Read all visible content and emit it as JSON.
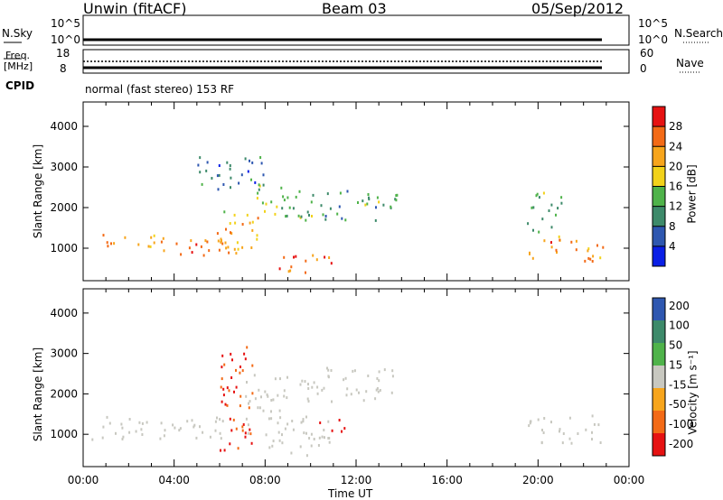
{
  "header": {
    "radar": "Unwin (fitACF)",
    "beam": "Beam 03",
    "date": "05/Sep/2012"
  },
  "noise_panel": {
    "left_label": "N.Sky",
    "right_label": "N.Search",
    "left_ticks": [
      "10^5",
      "10^0"
    ],
    "right_ticks": [
      "10^5",
      "10^0"
    ]
  },
  "freq_panel": {
    "left_label_1": "Freq.",
    "left_label_2": "[MHz]",
    "right_label": "Nave",
    "left_ticks": [
      "18",
      "8"
    ],
    "right_ticks": [
      "60",
      "0"
    ]
  },
  "cpid": {
    "label": "CPID",
    "text": "normal (fast stereo) 153 RF"
  },
  "colors": {
    "power": [
      "#0a1fe6",
      "#2e57b0",
      "#3d8a6a",
      "#4fb34a",
      "#f2d21a",
      "#f7a51c",
      "#f36a16",
      "#e61212"
    ],
    "velocity": [
      "#e61212",
      "#f36a16",
      "#f7a51c",
      "#c8c8c0",
      "#4fb34a",
      "#3d8a6a",
      "#2e57b0"
    ]
  },
  "chart_data": [
    {
      "type": "heatmap",
      "panel": "power",
      "ylabel": "Slant Range [km]",
      "y_ticks": [
        "1000",
        "2000",
        "3000",
        "4000"
      ],
      "ylim": [
        200,
        4600
      ],
      "colorbar_label": "Power [dB]",
      "colorbar_ticks": [
        "4",
        "8",
        "12",
        "16",
        "20",
        "24",
        "28"
      ],
      "colorbar_range": [
        0,
        32
      ],
      "echo_regions": [
        {
          "t0": 0.3,
          "t1": 3.5,
          "r0": 1000,
          "r1": 1400,
          "power": 22
        },
        {
          "t0": 3.5,
          "t1": 6.5,
          "r0": 800,
          "r1": 1400,
          "power": 26
        },
        {
          "t0": 6.0,
          "t1": 8.0,
          "r0": 900,
          "r1": 2000,
          "power": 20
        },
        {
          "t0": 7.0,
          "t1": 9.5,
          "r0": 1800,
          "r1": 2600,
          "power": 14
        },
        {
          "t0": 8.5,
          "t1": 11.0,
          "r0": 400,
          "r1": 900,
          "power": 26
        },
        {
          "t0": 9.5,
          "t1": 13.8,
          "r0": 1700,
          "r1": 2500,
          "power": 12
        },
        {
          "t0": 5.0,
          "t1": 8.0,
          "r0": 2400,
          "r1": 3300,
          "power": 8
        },
        {
          "t0": 19.5,
          "t1": 22.9,
          "r0": 700,
          "r1": 1300,
          "power": 24
        },
        {
          "t0": 19.5,
          "t1": 21.0,
          "r0": 1300,
          "r1": 2400,
          "power": 12
        }
      ]
    },
    {
      "type": "heatmap",
      "panel": "velocity",
      "ylabel": "Slant Range [km]",
      "y_ticks": [
        "1000",
        "2000",
        "3000",
        "4000"
      ],
      "ylim": [
        200,
        4600
      ],
      "xlabel": "Time UT",
      "x_ticks": [
        "00:00",
        "04:00",
        "08:00",
        "12:00",
        "16:00",
        "20:00",
        "00:00"
      ],
      "xlim": [
        0,
        24
      ],
      "colorbar_label": "Velocity [m s⁻¹]",
      "colorbar_ticks": [
        "200",
        "100",
        "50",
        "15",
        "-15",
        "-50",
        "-100",
        "-200"
      ],
      "colorbar_range": [
        -250,
        250
      ],
      "echo_regions": [
        {
          "t0": 0.3,
          "t1": 6.5,
          "r0": 900,
          "r1": 1500,
          "velocity": 0
        },
        {
          "t0": 6.0,
          "t1": 7.5,
          "r0": 600,
          "r1": 3300,
          "velocity": -150
        },
        {
          "t0": 7.0,
          "t1": 9.0,
          "r0": 1000,
          "r1": 2500,
          "velocity": 0
        },
        {
          "t0": 8.0,
          "t1": 11.0,
          "r0": 500,
          "r1": 1500,
          "velocity": 0
        },
        {
          "t0": 9.5,
          "t1": 13.8,
          "r0": 1800,
          "r1": 2700,
          "velocity": 0
        },
        {
          "t0": 10.0,
          "t1": 11.5,
          "r0": 1100,
          "r1": 1400,
          "velocity": -200
        },
        {
          "t0": 19.5,
          "t1": 22.9,
          "r0": 800,
          "r1": 1500,
          "velocity": 0
        }
      ]
    }
  ]
}
